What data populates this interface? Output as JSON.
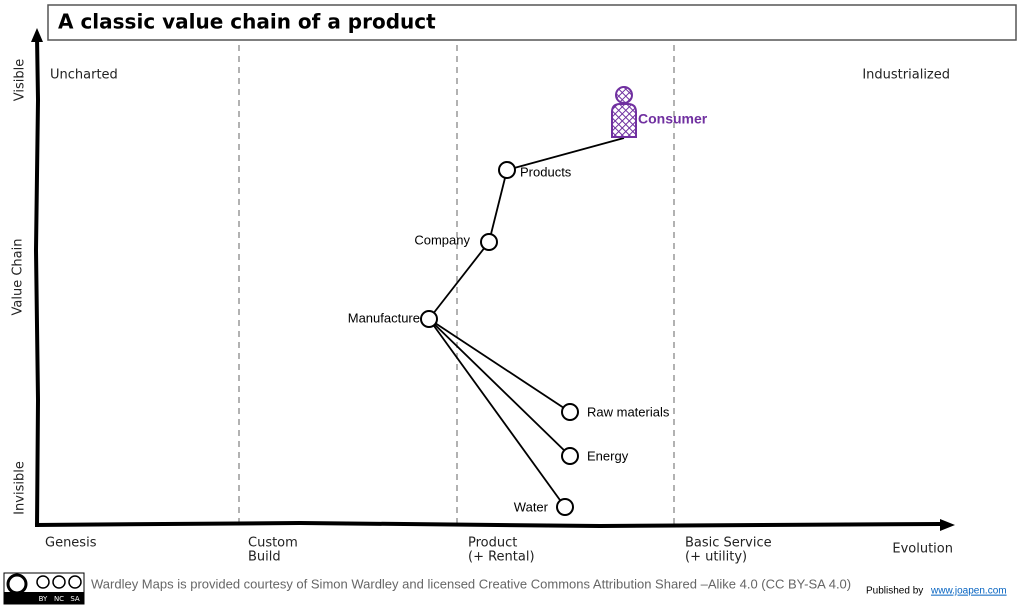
{
  "title": "A classic value chain of a product",
  "y_axis": {
    "label": "Value Chain",
    "top": "Visible",
    "bottom": "Invisible"
  },
  "corners": {
    "left": "Uncharted",
    "right": "Industrialized"
  },
  "x_axis": {
    "label": "Evolution",
    "stages": [
      [
        "Genesis"
      ],
      [
        "Custom",
        "Build"
      ],
      [
        "Product",
        "(+ Rental)"
      ],
      [
        "Basic Service",
        "(+ utility)"
      ]
    ]
  },
  "nodes": [
    {
      "label": "Consumer"
    },
    {
      "label": "Products"
    },
    {
      "label": "Company"
    },
    {
      "label": "Manufacture"
    },
    {
      "label": "Raw materials"
    },
    {
      "label": "Energy"
    },
    {
      "label": "Water"
    }
  ],
  "footer": {
    "license_badge": [
      "BY",
      "NC",
      "SA"
    ],
    "credit": "Wardley Maps is provided courtesy of Simon Wardley and licensed  Creative Commons Attribution Shared –Alike 4.0 (CC BY-SA 4.0)",
    "published_by": "Published by",
    "link": "www.joapen.com"
  }
}
